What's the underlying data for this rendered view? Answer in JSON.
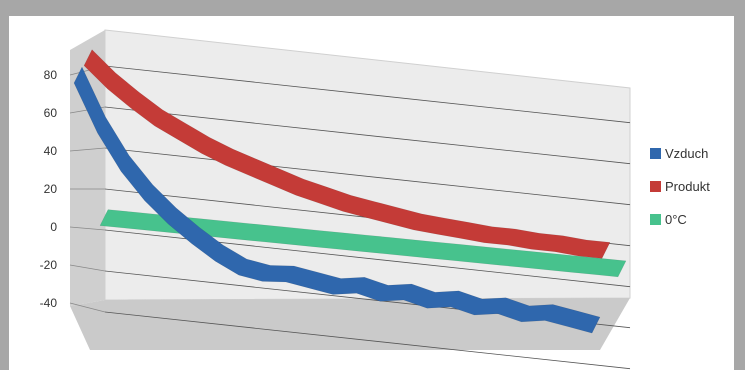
{
  "chart_data": {
    "type": "line",
    "style": "3d-ribbon",
    "yticks": [
      80,
      60,
      40,
      20,
      0,
      -20,
      -40
    ],
    "ylim": [
      -40,
      90
    ],
    "grid": true,
    "legend_position": "right",
    "series": [
      {
        "name": "Vzduch",
        "color": "#2f67ad",
        "values": [
          80,
          55,
          36,
          22,
          11,
          2,
          -6,
          -12,
          -14,
          -13,
          -15,
          -17,
          -15,
          -18,
          -16,
          -19,
          -17,
          -20,
          -18,
          -21,
          -19,
          -21,
          -23
        ]
      },
      {
        "name": "Produkt",
        "color": "#c43b37",
        "values": [
          84,
          72,
          62,
          53,
          46,
          39,
          33,
          28,
          23,
          18,
          14,
          10,
          7,
          4,
          1,
          -1,
          -3,
          -5,
          -6,
          -8,
          -9,
          -11,
          -12
        ]
      },
      {
        "name": "0°C",
        "color": "#47c28d",
        "values": [
          0,
          0,
          0,
          0,
          0,
          0,
          0,
          0,
          0,
          0,
          0,
          0,
          0,
          0,
          0,
          0,
          0,
          0,
          0,
          0,
          0,
          0,
          0
        ]
      }
    ]
  }
}
